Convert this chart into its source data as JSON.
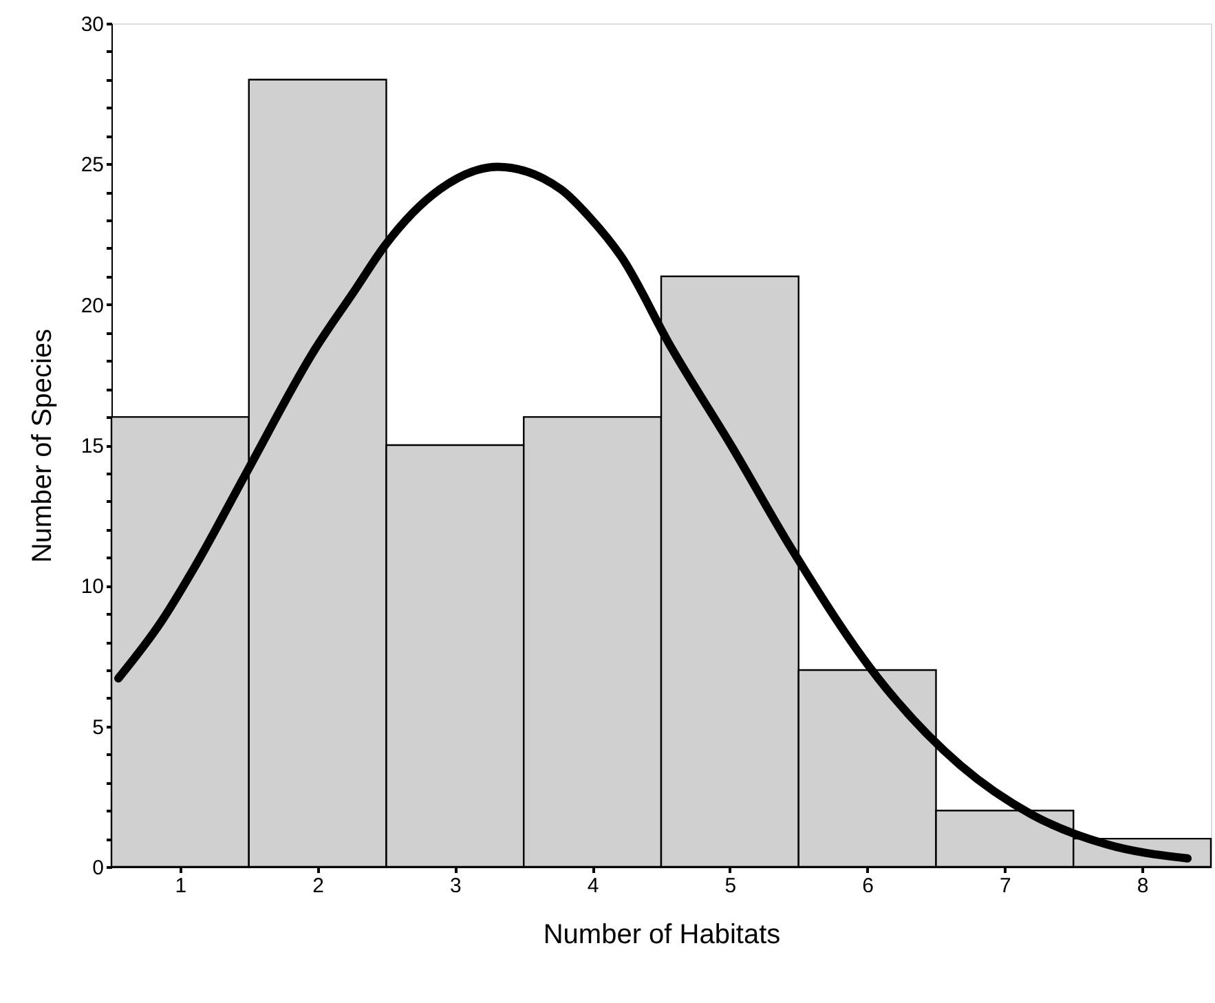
{
  "chart_data": {
    "type": "histogram",
    "xlabel": "Number of Habitats",
    "ylabel": "Number of Species",
    "bins": [
      0.5,
      1.5,
      2.5,
      3.5,
      4.5,
      5.5,
      6.5,
      7.5,
      8.5
    ],
    "values": [
      16,
      28,
      15,
      16,
      21,
      7,
      2,
      1
    ],
    "color": "#d0d0d0",
    "series": [
      {
        "type": "line",
        "color": "#000000",
        "x": [
          0.55,
          0.86,
          1.11,
          1.48,
          1.98,
          2.27,
          2.49,
          2.89,
          3.31,
          3.77,
          3.98,
          4.21,
          4.57,
          5.02,
          5.45,
          6.08,
          6.68,
          7.2,
          7.74,
          8.33
        ],
        "values": [
          6.7,
          8.7,
          10.7,
          14.0,
          18.4,
          20.5,
          22.1,
          24.1,
          24.9,
          24.1,
          23.1,
          21.7,
          18.5,
          14.9,
          11.3,
          6.7,
          3.6,
          1.85,
          0.8,
          0.3
        ]
      }
    ],
    "xlim": [
      0.5,
      8.5
    ],
    "xticks": [
      1,
      2,
      3,
      4,
      5,
      6,
      7,
      8
    ],
    "ylim": [
      0,
      30
    ],
    "yticks": [
      0,
      {
        "value": 1,
        "label": null
      },
      {
        "value": 2,
        "label": null
      },
      {
        "value": 3,
        "label": null
      },
      {
        "value": 4,
        "label": null
      },
      5,
      {
        "value": 6,
        "label": null
      },
      {
        "value": 7,
        "label": null
      },
      {
        "value": 8,
        "label": null
      },
      {
        "value": 9,
        "label": null
      },
      10,
      {
        "value": 11,
        "label": null
      },
      {
        "value": 12,
        "label": null
      },
      {
        "value": 13,
        "label": null
      },
      {
        "value": 14,
        "label": null
      },
      15,
      {
        "value": 16,
        "label": null
      },
      {
        "value": 17,
        "label": null
      },
      {
        "value": 18,
        "label": null
      },
      {
        "value": 19,
        "label": null
      },
      20,
      {
        "value": 21,
        "label": null
      },
      {
        "value": 22,
        "label": null
      },
      {
        "value": 23,
        "label": null
      },
      {
        "value": 24,
        "label": null
      },
      25,
      {
        "value": 26,
        "label": null
      },
      {
        "value": 27,
        "label": null
      },
      {
        "value": 28,
        "label": null
      },
      {
        "value": 29,
        "label": null
      },
      30
    ],
    "grid": false,
    "marker": "none",
    "line_style": "solid"
  }
}
